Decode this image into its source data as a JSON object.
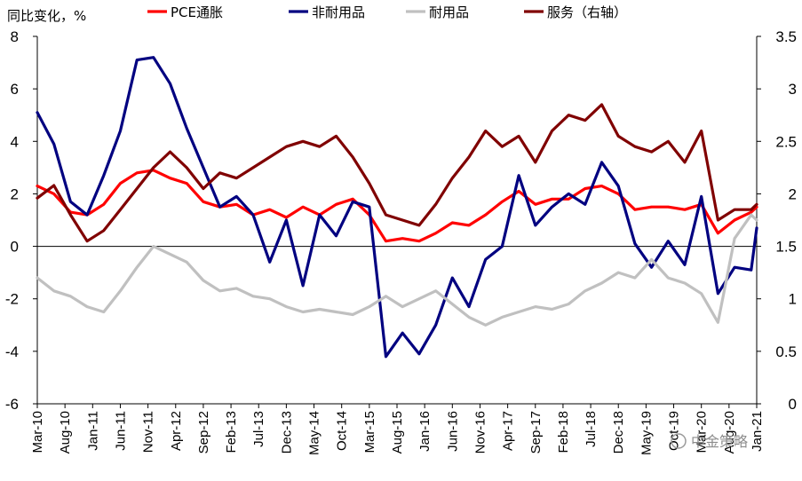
{
  "chart_data": {
    "type": "line",
    "y_left_label": "同比变化，%",
    "y_left_lim": [
      -6,
      8
    ],
    "y_left_ticks": [
      "-6",
      "-4",
      "-2",
      "0",
      "2",
      "4",
      "6",
      "8"
    ],
    "y_right_lim": [
      0,
      3.5
    ],
    "y_right_ticks": [
      "0",
      "0.5",
      "1",
      "1.5",
      "2",
      "2.5",
      "3",
      "3.5"
    ],
    "x_start": "2010-03",
    "x_end": "2021-01",
    "x_tick_labels": [
      "Mar-10",
      "Aug-10",
      "Jan-11",
      "Jun-11",
      "Nov-11",
      "Apr-12",
      "Sep-12",
      "Feb-13",
      "Jul-13",
      "Dec-13",
      "May-14",
      "Oct-14",
      "Mar-15",
      "Aug-15",
      "Jan-16",
      "Jun-16",
      "Nov-16",
      "Apr-17",
      "Sep-17",
      "Feb-18",
      "Jul-18",
      "Dec-18",
      "May-19",
      "Oct-19",
      "Mar-20",
      "Aug-20",
      "Jan-21"
    ],
    "legend_position": "top",
    "series": [
      {
        "name": "PCE通胀",
        "axis": "left",
        "color": "#ff0000",
        "values": [
          [
            "2010-03",
            2.3
          ],
          [
            "2010-06",
            2.0
          ],
          [
            "2010-09",
            1.3
          ],
          [
            "2010-12",
            1.2
          ],
          [
            "2011-03",
            1.6
          ],
          [
            "2011-06",
            2.4
          ],
          [
            "2011-09",
            2.8
          ],
          [
            "2011-12",
            2.9
          ],
          [
            "2012-03",
            2.6
          ],
          [
            "2012-06",
            2.4
          ],
          [
            "2012-09",
            1.7
          ],
          [
            "2012-12",
            1.5
          ],
          [
            "2013-03",
            1.6
          ],
          [
            "2013-06",
            1.2
          ],
          [
            "2013-09",
            1.4
          ],
          [
            "2013-12",
            1.1
          ],
          [
            "2014-03",
            1.5
          ],
          [
            "2014-06",
            1.2
          ],
          [
            "2014-09",
            1.6
          ],
          [
            "2014-12",
            1.8
          ],
          [
            "2015-03",
            1.2
          ],
          [
            "2015-06",
            0.2
          ],
          [
            "2015-09",
            0.3
          ],
          [
            "2015-12",
            0.2
          ],
          [
            "2016-03",
            0.5
          ],
          [
            "2016-06",
            0.9
          ],
          [
            "2016-09",
            0.8
          ],
          [
            "2016-12",
            1.2
          ],
          [
            "2017-03",
            1.7
          ],
          [
            "2017-06",
            2.1
          ],
          [
            "2017-09",
            1.6
          ],
          [
            "2017-12",
            1.8
          ],
          [
            "2018-03",
            1.8
          ],
          [
            "2018-06",
            2.2
          ],
          [
            "2018-09",
            2.3
          ],
          [
            "2018-12",
            2.0
          ],
          [
            "2019-03",
            1.4
          ],
          [
            "2019-06",
            1.5
          ],
          [
            "2019-09",
            1.5
          ],
          [
            "2019-12",
            1.4
          ],
          [
            "2020-03",
            1.6
          ],
          [
            "2020-06",
            0.5
          ],
          [
            "2020-09",
            1.0
          ],
          [
            "2020-12",
            1.3
          ],
          [
            "2021-01",
            1.5
          ]
        ]
      },
      {
        "name": "非耐用品",
        "axis": "left",
        "color": "#000080",
        "values": [
          [
            "2010-03",
            5.1
          ],
          [
            "2010-06",
            3.9
          ],
          [
            "2010-09",
            1.7
          ],
          [
            "2010-12",
            1.2
          ],
          [
            "2011-03",
            2.7
          ],
          [
            "2011-06",
            4.4
          ],
          [
            "2011-09",
            7.1
          ],
          [
            "2011-12",
            7.2
          ],
          [
            "2012-03",
            6.2
          ],
          [
            "2012-06",
            4.5
          ],
          [
            "2012-09",
            3.0
          ],
          [
            "2012-12",
            1.5
          ],
          [
            "2013-03",
            1.9
          ],
          [
            "2013-06",
            1.2
          ],
          [
            "2013-09",
            -0.6
          ],
          [
            "2013-12",
            1.0
          ],
          [
            "2014-03",
            -1.5
          ],
          [
            "2014-06",
            1.2
          ],
          [
            "2014-09",
            0.4
          ],
          [
            "2014-12",
            1.7
          ],
          [
            "2015-03",
            1.5
          ],
          [
            "2015-06",
            -4.2
          ],
          [
            "2015-09",
            -3.3
          ],
          [
            "2015-12",
            -4.1
          ],
          [
            "2016-03",
            -3.0
          ],
          [
            "2016-06",
            -1.2
          ],
          [
            "2016-09",
            -2.3
          ],
          [
            "2016-12",
            -0.5
          ],
          [
            "2017-03",
            0.0
          ],
          [
            "2017-06",
            2.7
          ],
          [
            "2017-09",
            0.8
          ],
          [
            "2017-12",
            1.5
          ],
          [
            "2018-03",
            2.0
          ],
          [
            "2018-06",
            1.6
          ],
          [
            "2018-09",
            3.2
          ],
          [
            "2018-12",
            2.3
          ],
          [
            "2019-03",
            0.1
          ],
          [
            "2019-06",
            -0.8
          ],
          [
            "2019-09",
            0.2
          ],
          [
            "2019-12",
            -0.7
          ],
          [
            "2020-03",
            1.9
          ],
          [
            "2020-06",
            -1.8
          ],
          [
            "2020-09",
            -0.8
          ],
          [
            "2020-12",
            -0.9
          ],
          [
            "2021-01",
            0.7
          ]
        ]
      },
      {
        "name": "耐用品",
        "axis": "left",
        "color": "#c0c0c0",
        "values": [
          [
            "2010-03",
            -1.2
          ],
          [
            "2010-06",
            -1.7
          ],
          [
            "2010-09",
            -1.9
          ],
          [
            "2010-12",
            -2.3
          ],
          [
            "2011-03",
            -2.5
          ],
          [
            "2011-06",
            -1.7
          ],
          [
            "2011-09",
            -0.8
          ],
          [
            "2011-12",
            0.0
          ],
          [
            "2012-03",
            -0.3
          ],
          [
            "2012-06",
            -0.6
          ],
          [
            "2012-09",
            -1.3
          ],
          [
            "2012-12",
            -1.7
          ],
          [
            "2013-03",
            -1.6
          ],
          [
            "2013-06",
            -1.9
          ],
          [
            "2013-09",
            -2.0
          ],
          [
            "2013-12",
            -2.3
          ],
          [
            "2014-03",
            -2.5
          ],
          [
            "2014-06",
            -2.4
          ],
          [
            "2014-09",
            -2.5
          ],
          [
            "2014-12",
            -2.6
          ],
          [
            "2015-03",
            -2.3
          ],
          [
            "2015-06",
            -1.9
          ],
          [
            "2015-09",
            -2.3
          ],
          [
            "2015-12",
            -2.0
          ],
          [
            "2016-03",
            -1.7
          ],
          [
            "2016-06",
            -2.2
          ],
          [
            "2016-09",
            -2.7
          ],
          [
            "2016-12",
            -3.0
          ],
          [
            "2017-03",
            -2.7
          ],
          [
            "2017-06",
            -2.5
          ],
          [
            "2017-09",
            -2.3
          ],
          [
            "2017-12",
            -2.4
          ],
          [
            "2018-03",
            -2.2
          ],
          [
            "2018-06",
            -1.7
          ],
          [
            "2018-09",
            -1.4
          ],
          [
            "2018-12",
            -1.0
          ],
          [
            "2019-03",
            -1.2
          ],
          [
            "2019-06",
            -0.5
          ],
          [
            "2019-09",
            -1.2
          ],
          [
            "2019-12",
            -1.4
          ],
          [
            "2020-03",
            -1.8
          ],
          [
            "2020-06",
            -2.9
          ],
          [
            "2020-09",
            0.3
          ],
          [
            "2020-12",
            1.2
          ],
          [
            "2021-01",
            1.0
          ]
        ]
      },
      {
        "name": "服务（右轴）",
        "axis": "right",
        "color": "#800000",
        "values": [
          [
            "2010-03",
            1.96
          ],
          [
            "2010-06",
            2.08
          ],
          [
            "2010-09",
            1.8
          ],
          [
            "2010-12",
            1.55
          ],
          [
            "2011-03",
            1.65
          ],
          [
            "2011-06",
            1.85
          ],
          [
            "2011-09",
            2.05
          ],
          [
            "2011-12",
            2.25
          ],
          [
            "2012-03",
            2.4
          ],
          [
            "2012-06",
            2.25
          ],
          [
            "2012-09",
            2.05
          ],
          [
            "2012-12",
            2.2
          ],
          [
            "2013-03",
            2.15
          ],
          [
            "2013-06",
            2.25
          ],
          [
            "2013-09",
            2.35
          ],
          [
            "2013-12",
            2.45
          ],
          [
            "2014-03",
            2.5
          ],
          [
            "2014-06",
            2.45
          ],
          [
            "2014-09",
            2.55
          ],
          [
            "2014-12",
            2.35
          ],
          [
            "2015-03",
            2.1
          ],
          [
            "2015-06",
            1.8
          ],
          [
            "2015-09",
            1.75
          ],
          [
            "2015-12",
            1.7
          ],
          [
            "2016-03",
            1.9
          ],
          [
            "2016-06",
            2.15
          ],
          [
            "2016-09",
            2.35
          ],
          [
            "2016-12",
            2.6
          ],
          [
            "2017-03",
            2.45
          ],
          [
            "2017-06",
            2.55
          ],
          [
            "2017-09",
            2.3
          ],
          [
            "2017-12",
            2.6
          ],
          [
            "2018-03",
            2.75
          ],
          [
            "2018-06",
            2.7
          ],
          [
            "2018-09",
            2.85
          ],
          [
            "2018-12",
            2.55
          ],
          [
            "2019-03",
            2.45
          ],
          [
            "2019-06",
            2.4
          ],
          [
            "2019-09",
            2.5
          ],
          [
            "2019-12",
            2.3
          ],
          [
            "2020-03",
            2.6
          ],
          [
            "2020-06",
            1.75
          ],
          [
            "2020-09",
            1.85
          ],
          [
            "2020-12",
            1.85
          ],
          [
            "2021-01",
            1.9
          ]
        ]
      }
    ]
  },
  "watermark": "中金策略"
}
